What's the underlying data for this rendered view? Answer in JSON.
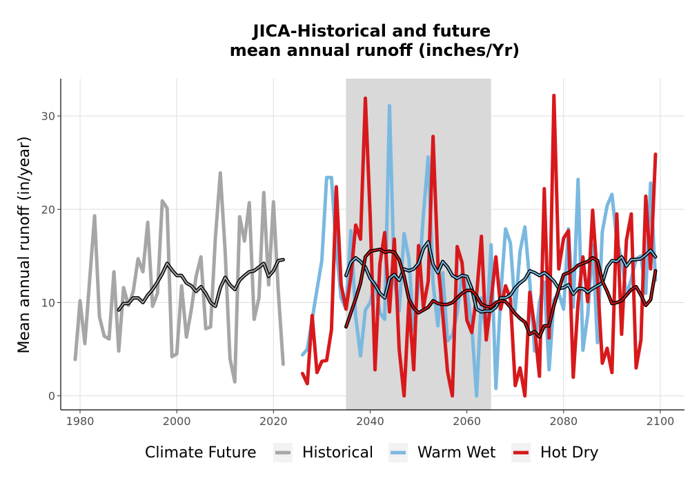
{
  "chart_data": {
    "type": "line",
    "title": [
      "JICA-Historical and future",
      "mean annual runoff (inches/Yr)"
    ],
    "xlabel": "",
    "ylabel": "Mean annual runoff (in/year)",
    "xlim": [
      1976,
      2105
    ],
    "ylim": [
      -1.5,
      34
    ],
    "xticks": [
      1980,
      2000,
      2020,
      2040,
      2060,
      2080,
      2100
    ],
    "yticks": [
      0,
      10,
      20,
      30
    ],
    "grid": true,
    "legend": {
      "title": "Climate Future",
      "position": "bottom"
    },
    "shaded_band": {
      "x0": 2035,
      "x1": 2065,
      "color": "#d9d9d9"
    },
    "series": [
      {
        "name": "Historical",
        "color": "#a6a6a6",
        "x": [
          1979,
          1980,
          1981,
          1982,
          1983,
          1984,
          1985,
          1986,
          1987,
          1988,
          1989,
          1990,
          1991,
          1992,
          1993,
          1994,
          1995,
          1996,
          1997,
          1998,
          1999,
          2000,
          2001,
          2002,
          2003,
          2004,
          2005,
          2006,
          2007,
          2008,
          2009,
          2010,
          2011,
          2012,
          2013,
          2014,
          2015,
          2016,
          2017,
          2018,
          2019,
          2020,
          2021,
          2022
        ],
        "y": [
          3.9,
          10.2,
          5.6,
          12.5,
          19.3,
          8.5,
          6.4,
          6.1,
          13.3,
          4.8,
          11.6,
          9.7,
          11.2,
          14.7,
          13.3,
          18.6,
          9.6,
          11.0,
          20.9,
          20.1,
          4.2,
          4.5,
          11.8,
          6.3,
          9.2,
          12.8,
          14.9,
          7.2,
          7.4,
          17.0,
          23.9,
          15.5,
          4.0,
          1.5,
          19.2,
          16.6,
          20.7,
          8.2,
          10.5,
          21.8,
          11.9,
          20.8,
          11.2,
          3.4
        ]
      },
      {
        "name": "Warm Wet",
        "color": "#7ab8e0",
        "x": [
          2026,
          2027,
          2028,
          2029,
          2030,
          2031,
          2032,
          2033,
          2034,
          2035,
          2036,
          2037,
          2038,
          2039,
          2040,
          2041,
          2042,
          2043,
          2044,
          2045,
          2046,
          2047,
          2048,
          2049,
          2050,
          2051,
          2052,
          2053,
          2054,
          2055,
          2056,
          2057,
          2058,
          2059,
          2060,
          2061,
          2062,
          2063,
          2064,
          2065,
          2066,
          2067,
          2068,
          2069,
          2070,
          2071,
          2072,
          2073,
          2074,
          2075,
          2076,
          2077,
          2078,
          2079,
          2080,
          2081,
          2082,
          2083,
          2084,
          2085,
          2086,
          2087,
          2088,
          2089,
          2090,
          2091,
          2092,
          2093,
          2094,
          2095,
          2096,
          2097,
          2098,
          2099
        ],
        "y": [
          4.4,
          5.0,
          8.2,
          11.4,
          14.5,
          23.4,
          23.4,
          15.7,
          10.5,
          9.3,
          17.7,
          8.5,
          4.3,
          9.2,
          10.0,
          12.2,
          8.9,
          8.2,
          31.1,
          12.4,
          9.1,
          17.4,
          14.7,
          7.1,
          12.0,
          19.4,
          25.6,
          12.1,
          7.5,
          13.2,
          5.9,
          6.5,
          8.9,
          13.2,
          11.4,
          7.5,
          0.0,
          10.5,
          6.6,
          16.2,
          0.8,
          10.9,
          17.9,
          16.4,
          9.2,
          15.5,
          18.1,
          12.2,
          4.8,
          10.0,
          12.2,
          2.8,
          10.3,
          11.0,
          9.3,
          17.9,
          9.5,
          23.2,
          4.9,
          8.7,
          16.2,
          5.7,
          17.6,
          20.4,
          21.6,
          16.7,
          14.6,
          10.8,
          12.5,
          14.7,
          15.0,
          11.0,
          22.8,
          12.4
        ]
      },
      {
        "name": "Hot Dry",
        "color": "#d7191c",
        "x": [
          2026,
          2027,
          2028,
          2029,
          2030,
          2031,
          2032,
          2033,
          2034,
          2035,
          2036,
          2037,
          2038,
          2039,
          2040,
          2041,
          2042,
          2043,
          2044,
          2045,
          2046,
          2047,
          2048,
          2049,
          2050,
          2051,
          2052,
          2053,
          2054,
          2055,
          2056,
          2057,
          2058,
          2059,
          2060,
          2061,
          2062,
          2063,
          2064,
          2065,
          2066,
          2067,
          2068,
          2069,
          2070,
          2071,
          2072,
          2073,
          2074,
          2075,
          2076,
          2077,
          2078,
          2079,
          2080,
          2081,
          2082,
          2083,
          2084,
          2085,
          2086,
          2087,
          2088,
          2089,
          2090,
          2091,
          2092,
          2093,
          2094,
          2095,
          2096,
          2097,
          2098,
          2099
        ],
        "y": [
          2.4,
          1.3,
          8.6,
          2.5,
          3.7,
          3.8,
          7.1,
          22.4,
          11.9,
          9.3,
          12.8,
          18.3,
          16.8,
          31.9,
          19.3,
          2.8,
          14.1,
          17.5,
          9.0,
          16.8,
          5.0,
          0.0,
          10.1,
          2.8,
          16.1,
          9.5,
          12.3,
          27.8,
          14.3,
          8.8,
          2.6,
          0.0,
          16.0,
          14.3,
          8.1,
          6.8,
          10.8,
          17.1,
          6.0,
          10.2,
          14.9,
          9.3,
          11.8,
          10.4,
          1.1,
          3.0,
          0.0,
          11.1,
          7.3,
          2.1,
          22.2,
          6.2,
          32.2,
          13.6,
          16.9,
          17.7,
          2.0,
          10.0,
          14.9,
          10.1,
          19.9,
          12.5,
          3.5,
          5.1,
          2.5,
          19.5,
          6.6,
          16.7,
          19.5,
          3.0,
          6.0,
          21.4,
          13.6,
          25.9
        ]
      },
      {
        "name": "",
        "color": "#000000",
        "smoothed_of": "Historical",
        "x": [
          1988,
          1989,
          1990,
          1991,
          1992,
          1993,
          1994,
          1995,
          1996,
          1997,
          1998,
          1999,
          2000,
          2001,
          2002,
          2003,
          2004,
          2005,
          2006,
          2007,
          2008,
          2009,
          2010,
          2011,
          2012,
          2013,
          2014,
          2015,
          2016,
          2017,
          2018,
          2019,
          2020,
          2021,
          2022
        ],
        "y": [
          9.2,
          9.9,
          9.9,
          10.5,
          10.5,
          10.0,
          10.8,
          11.4,
          12.2,
          13.1,
          14.2,
          13.5,
          12.9,
          12.9,
          12.1,
          11.8,
          11.2,
          11.7,
          11.0,
          10.0,
          9.6,
          11.6,
          12.7,
          11.9,
          11.4,
          12.4,
          12.9,
          13.3,
          13.4,
          13.8,
          14.2,
          12.8,
          13.4,
          14.5,
          14.6
        ]
      },
      {
        "name": "",
        "color": "#000000",
        "smoothed_of": "Warm Wet",
        "x": [
          2035,
          2036,
          2037,
          2038,
          2039,
          2040,
          2041,
          2042,
          2043,
          2044,
          2045,
          2046,
          2047,
          2048,
          2049,
          2050,
          2051,
          2052,
          2053,
          2054,
          2055,
          2056,
          2057,
          2058,
          2059,
          2060,
          2061,
          2062,
          2063,
          2064,
          2065,
          2066,
          2067,
          2068,
          2069,
          2070,
          2071,
          2072,
          2073,
          2074,
          2075,
          2076,
          2077,
          2078,
          2079,
          2080,
          2081,
          2082,
          2083,
          2084,
          2085,
          2086,
          2087,
          2088,
          2089,
          2090,
          2091,
          2092,
          2093,
          2094,
          2095,
          2096,
          2097,
          2098,
          2099
        ],
        "y": [
          12.9,
          14.3,
          14.8,
          14.4,
          13.8,
          12.6,
          11.9,
          11.0,
          10.5,
          12.6,
          13.0,
          12.4,
          13.6,
          13.4,
          13.6,
          14.2,
          15.8,
          16.5,
          14.1,
          13.2,
          14.4,
          13.8,
          12.9,
          12.6,
          12.9,
          12.8,
          11.5,
          9.3,
          9.0,
          9.1,
          9.1,
          9.5,
          10.5,
          10.5,
          10.8,
          11.6,
          12.1,
          12.5,
          13.4,
          13.2,
          12.9,
          13.2,
          12.8,
          12.3,
          11.5,
          11.6,
          11.9,
          10.9,
          11.5,
          11.5,
          11.1,
          11.5,
          11.8,
          12.1,
          13.8,
          14.5,
          14.4,
          14.9,
          13.9,
          14.6,
          14.6,
          14.7,
          15.1,
          15.6,
          14.9
        ]
      },
      {
        "name": "",
        "color": "#000000",
        "smoothed_of": "Hot Dry",
        "x": [
          2035,
          2036,
          2037,
          2038,
          2039,
          2040,
          2041,
          2042,
          2043,
          2044,
          2045,
          2046,
          2047,
          2048,
          2049,
          2050,
          2051,
          2052,
          2053,
          2054,
          2055,
          2056,
          2057,
          2058,
          2059,
          2060,
          2061,
          2062,
          2063,
          2064,
          2065,
          2066,
          2067,
          2068,
          2069,
          2070,
          2071,
          2072,
          2073,
          2074,
          2075,
          2076,
          2077,
          2078,
          2079,
          2080,
          2081,
          2082,
          2083,
          2084,
          2085,
          2086,
          2087,
          2088,
          2089,
          2090,
          2091,
          2092,
          2093,
          2094,
          2095,
          2096,
          2097,
          2098,
          2099
        ],
        "y": [
          7.4,
          8.9,
          10.4,
          12.1,
          14.9,
          15.5,
          15.6,
          15.7,
          15.4,
          15.5,
          15.4,
          14.6,
          12.8,
          10.4,
          9.4,
          8.9,
          9.2,
          9.5,
          10.2,
          9.9,
          9.8,
          9.8,
          10.0,
          10.5,
          11.0,
          11.3,
          11.3,
          10.7,
          9.8,
          9.6,
          9.5,
          10.0,
          10.2,
          10.1,
          9.5,
          8.8,
          8.3,
          7.9,
          6.6,
          6.9,
          6.3,
          7.5,
          7.5,
          9.7,
          11.4,
          13.0,
          13.2,
          13.5,
          14.0,
          14.2,
          14.4,
          14.8,
          14.5,
          12.3,
          11.2,
          9.9,
          10.0,
          10.2,
          10.8,
          11.4,
          11.7,
          10.8,
          9.7,
          10.3,
          13.4
        ]
      }
    ]
  }
}
